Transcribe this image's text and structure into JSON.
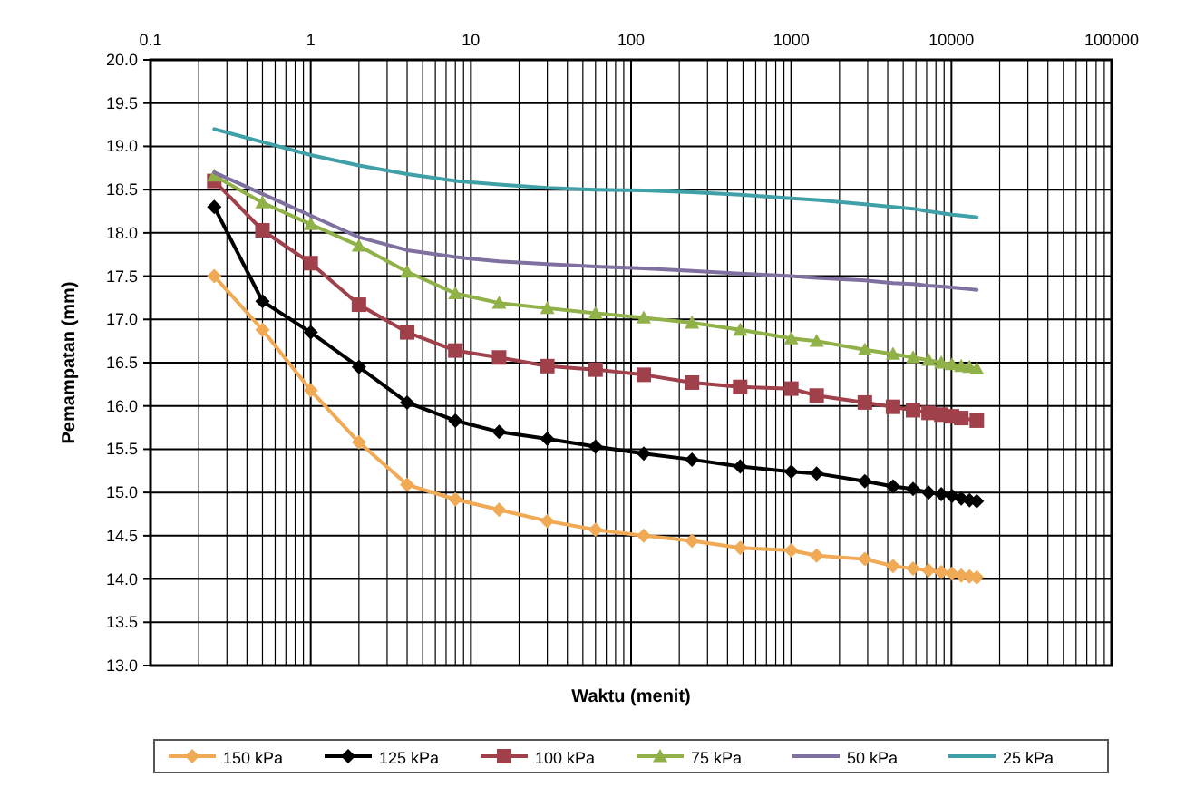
{
  "chart_data": {
    "type": "line",
    "xlabel": "Waktu (menit)",
    "ylabel": "Pemampatan (mm)",
    "log": "x",
    "grid": true,
    "legend": "bottom",
    "line_style": "solid",
    "x": [
      0.25,
      0.5,
      1,
      2,
      4,
      8,
      15,
      30,
      60,
      120,
      240,
      480,
      1000,
      1440,
      2880,
      4320,
      5760,
      7200,
      8640,
      10080,
      11520,
      12960,
      14400
    ],
    "xlim": [
      0.1,
      100000
    ],
    "xticks": [
      0.1,
      1,
      10,
      100,
      1000,
      10000,
      100000
    ],
    "ylim": [
      13.0,
      20.0
    ],
    "yticks": [
      {
        "value": 13,
        "label": "13.0"
      },
      {
        "value": 13.5,
        "label": "13.5"
      },
      {
        "value": 14,
        "label": "14.0"
      },
      {
        "value": 14.5,
        "label": "14.5"
      },
      {
        "value": 15,
        "label": "15.0"
      },
      {
        "value": 15.5,
        "label": "15.5"
      },
      {
        "value": 16,
        "label": "16.0"
      },
      {
        "value": 16.5,
        "label": "16.5"
      },
      {
        "value": 17,
        "label": "17.0"
      },
      {
        "value": 17.5,
        "label": "17.5"
      },
      {
        "value": 18,
        "label": "18.0"
      },
      {
        "value": 18.5,
        "label": "18.5"
      },
      {
        "value": 19,
        "label": "19.0"
      },
      {
        "value": 19.5,
        "label": "19.5"
      },
      {
        "value": 20,
        "label": "20.0"
      }
    ],
    "series": [
      {
        "name": "150 kPa",
        "color": "#f0aa55",
        "marker": "diamond",
        "values": [
          17.5,
          16.88,
          16.18,
          15.58,
          15.09,
          14.92,
          14.8,
          14.67,
          14.57,
          14.5,
          14.44,
          14.36,
          14.33,
          14.27,
          14.23,
          14.15,
          14.12,
          14.1,
          14.08,
          14.06,
          14.04,
          14.03,
          14.02
        ]
      },
      {
        "name": "125 kPa",
        "color": "#000000",
        "marker": "diamond",
        "values": [
          18.3,
          17.21,
          16.85,
          16.45,
          16.04,
          15.83,
          15.7,
          15.62,
          15.53,
          15.45,
          15.38,
          15.3,
          15.24,
          15.22,
          15.13,
          15.07,
          15.04,
          15.0,
          14.98,
          14.96,
          14.93,
          14.91,
          14.9
        ]
      },
      {
        "name": "100 kPa",
        "color": "#a0404a",
        "marker": "square",
        "values": [
          18.6,
          18.03,
          17.65,
          17.17,
          16.85,
          16.64,
          16.56,
          16.46,
          16.42,
          16.36,
          16.27,
          16.22,
          16.2,
          16.12,
          16.04,
          15.99,
          15.95,
          15.92,
          15.9,
          15.88,
          15.86,
          null,
          15.83
        ]
      },
      {
        "name": "75 kPa",
        "color": "#90b048",
        "marker": "triangle",
        "values": [
          18.66,
          18.35,
          18.1,
          17.85,
          17.55,
          17.3,
          17.19,
          17.13,
          17.07,
          17.02,
          16.96,
          16.88,
          16.78,
          16.75,
          16.65,
          16.6,
          16.56,
          16.53,
          16.5,
          16.48,
          16.46,
          16.45,
          16.43
        ]
      },
      {
        "name": "50 kPa",
        "color": "#8070a0",
        "marker": "none",
        "values": [
          18.7,
          18.45,
          18.2,
          17.95,
          17.8,
          17.72,
          17.67,
          17.64,
          17.61,
          17.59,
          17.56,
          17.53,
          17.5,
          17.48,
          17.45,
          17.42,
          17.41,
          17.39,
          17.38,
          17.37,
          17.36,
          17.35,
          17.34
        ]
      },
      {
        "name": "25 kPa",
        "color": "#40a0a8",
        "marker": "none",
        "values": [
          19.2,
          19.05,
          18.9,
          18.78,
          18.68,
          18.6,
          18.56,
          18.52,
          18.5,
          18.49,
          18.47,
          18.44,
          18.4,
          18.38,
          18.33,
          18.3,
          18.28,
          18.25,
          18.23,
          18.21,
          18.2,
          18.19,
          18.18
        ]
      }
    ]
  }
}
